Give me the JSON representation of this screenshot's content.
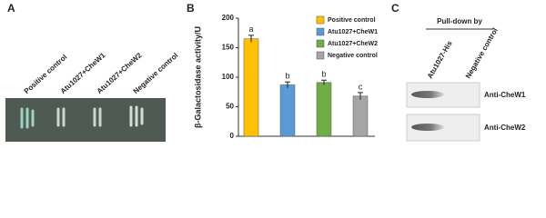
{
  "panel_a": {
    "label": "A",
    "strains": [
      "Positive control",
      "Atu1027+CheW1",
      "Atu1027+CheW2",
      "Negative control"
    ]
  },
  "chart_data": {
    "type": "bar",
    "panel_label": "B",
    "ylabel": "β-Galactosidase activity/U",
    "categories": [
      null
    ],
    "series": [
      {
        "name": "Positive control",
        "color": "#ffc000",
        "values": [
          165
        ],
        "errors": [
          6
        ],
        "letters": [
          "a"
        ]
      },
      {
        "name": "Atu1027+CheW1",
        "color": "#5b9bd5",
        "values": [
          87
        ],
        "errors": [
          5
        ],
        "letters": [
          "b"
        ]
      },
      {
        "name": "Atu1027+CheW2",
        "color": "#70ad47",
        "values": [
          91
        ],
        "errors": [
          4
        ],
        "letters": [
          "b"
        ]
      },
      {
        "name": "Negative control",
        "color": "#a5a5a5",
        "values": [
          68
        ],
        "errors": [
          6
        ],
        "letters": [
          "c"
        ]
      }
    ],
    "ylim": [
      0,
      200
    ],
    "yticks": [
      0,
      50,
      100,
      150,
      200
    ],
    "grid": false,
    "legend": "top-right"
  },
  "panel_c": {
    "label": "C",
    "heading": "Pull-down by",
    "lanes": [
      "Atu1027-His",
      "Negative control"
    ],
    "rows": [
      "Anti-CheW1",
      "Anti-CheW2"
    ]
  }
}
